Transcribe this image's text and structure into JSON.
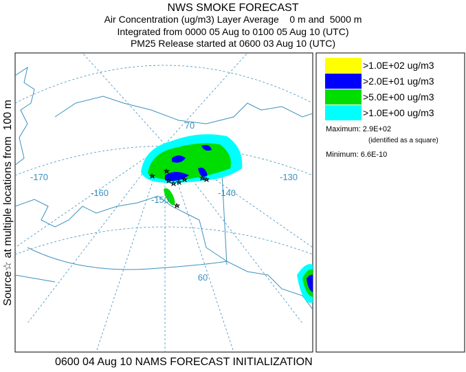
{
  "title": "NWS SMOKE FORECAST",
  "subtitle_lines": [
    "Air Concentration (ug/m3) Layer Average    0 m and  5000 m",
    "Integrated from 0000 05 Aug to 0100 05 Aug 10 (UTC)",
    "PM25 Release started at 0600 03 Aug 10 (UTC)"
  ],
  "side_label": "Source☆ at multiple locations from  100 m",
  "footer": "0600 04 Aug 10 NAMS FORECAST INITIALIZATION",
  "legend": [
    {
      "label": ">1.0E+02 ug/m3",
      "color": "#ffff00"
    },
    {
      "label": ">2.0E+01 ug/m3",
      "color": "#0000ff"
    },
    {
      "label": ">5.0E+00 ug/m3",
      "color": "#00dd00"
    },
    {
      "label": ">1.0E+00 ug/m3",
      "color": "#00ffff"
    }
  ],
  "maximum": "Maximum: 2.9E+02",
  "maximum_note": "(identified as a square)",
  "minimum": "Minimum: 6.6E-10",
  "map_labels": [
    "-170",
    "-160",
    "-150",
    "-140",
    "-130",
    "70",
    "60"
  ]
}
